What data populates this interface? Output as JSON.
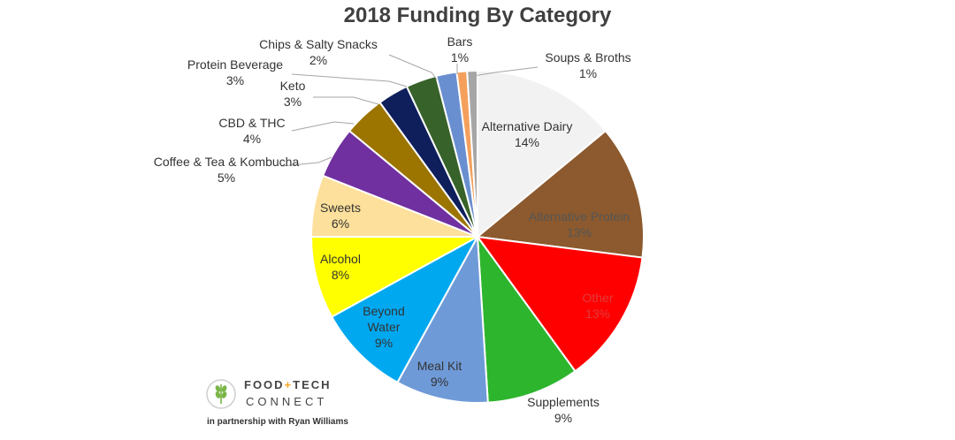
{
  "chart_data": {
    "type": "pie",
    "title": "2018 Funding By Category",
    "slices": [
      {
        "label": "Alternative Dairy",
        "pct_label": "14%",
        "value": 14,
        "color": "#f2f2f2",
        "text_color": "#333333"
      },
      {
        "label": "Alternative Protein",
        "pct_label": "13%",
        "value": 13,
        "color": "#8c5a2e",
        "text_color": "#555555"
      },
      {
        "label": "Other",
        "pct_label": "13%",
        "value": 13,
        "color": "#ff0000",
        "text_color": "#e03b3b"
      },
      {
        "label": "Supplements",
        "pct_label": "9%",
        "value": 9,
        "color": "#2db52d",
        "text_color": "#333333"
      },
      {
        "label": "Meal Kit",
        "pct_label": "9%",
        "value": 9,
        "color": "#6f9ad8",
        "text_color": "#333333"
      },
      {
        "label": "Beyond Water",
        "pct_label": "9%",
        "value": 9,
        "color": "#00a8f0",
        "text_color": "#333333"
      },
      {
        "label": "Alcohol",
        "pct_label": "8%",
        "value": 8,
        "color": "#ffff00",
        "text_color": "#333333"
      },
      {
        "label": "Sweets",
        "pct_label": "6%",
        "value": 6,
        "color": "#fde09b",
        "text_color": "#333333"
      },
      {
        "label": "Coffee & Tea & Kombucha",
        "pct_label": "5%",
        "value": 5,
        "color": "#7030a0",
        "text_color": "#333333"
      },
      {
        "label": "CBD & THC",
        "pct_label": "4%",
        "value": 4,
        "color": "#9c7400",
        "text_color": "#333333"
      },
      {
        "label": "Keto",
        "pct_label": "3%",
        "value": 3,
        "color": "#0f1f5c",
        "text_color": "#333333"
      },
      {
        "label": "Protein Beverage",
        "pct_label": "3%",
        "value": 3,
        "color": "#37622a",
        "text_color": "#333333"
      },
      {
        "label": "Chips & Salty Snacks",
        "pct_label": "2%",
        "value": 2,
        "color": "#6a8fd0",
        "text_color": "#333333"
      },
      {
        "label": "Bars",
        "pct_label": "1%",
        "value": 1,
        "color": "#f4a05c",
        "text_color": "#333333"
      },
      {
        "label": "Soups & Broths",
        "pct_label": "1%",
        "value": 1,
        "color": "#a6a6a6",
        "text_color": "#333333"
      }
    ]
  },
  "branding": {
    "logo_line1_left": "FOOD",
    "logo_line1_sep": "+",
    "logo_line1_right": "TECH",
    "logo_line2": "CONNECT",
    "tagline": "in partnership with Ryan Williams",
    "accent": "#f5a623",
    "leaf_color": "#7ab648"
  }
}
